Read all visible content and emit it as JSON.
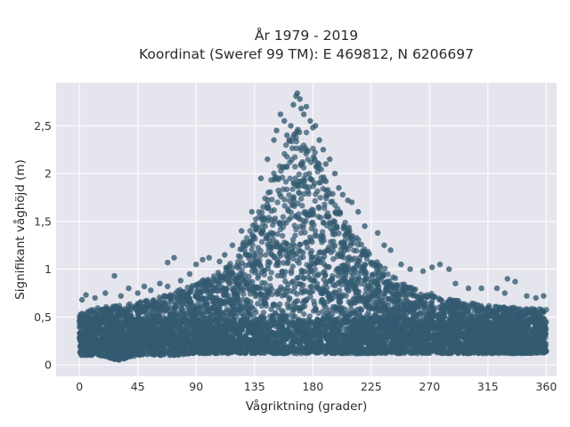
{
  "colors": {
    "plot_background": "#e5e5ee",
    "grid": "#ffffff",
    "marker": "#335a70",
    "marker_dark": "#2a4d61",
    "text": "#2a2a2a"
  },
  "chart_data": {
    "type": "scatter",
    "title": "År 1979 - 2019",
    "subtitle": "Koordinat (Sweref 99 TM): E 469812, N 6206697",
    "xlabel": "Vågriktning (grader)",
    "ylabel": "Signifikant våghöjd (m)",
    "xlim": [
      -18,
      368
    ],
    "ylim": [
      -0.12,
      2.95
    ],
    "x_ticks": [
      0,
      45,
      90,
      135,
      180,
      225,
      270,
      315,
      360
    ],
    "x_tick_labels": [
      "0",
      "45",
      "90",
      "135",
      "180",
      "225",
      "270",
      "315",
      "360"
    ],
    "y_ticks": [
      0,
      0.5,
      1,
      1.5,
      2,
      2.5
    ],
    "y_tick_labels": [
      "0",
      "0,5",
      "1",
      "1,5",
      "2",
      "2,5"
    ],
    "grid": true,
    "series": [
      {
        "marker_color": "#335a70",
        "envelope": {
          "direction_deg": [
            0,
            15,
            30,
            45,
            60,
            75,
            90,
            105,
            120,
            135,
            145,
            155,
            160,
            165,
            170,
            175,
            180,
            190,
            200,
            210,
            225,
            240,
            255,
            270,
            285,
            300,
            315,
            330,
            345,
            360
          ],
          "lower_height_m": [
            0.1,
            0.1,
            0.05,
            0.1,
            0.1,
            0.1,
            0.12,
            0.12,
            0.12,
            0.12,
            0.12,
            0.12,
            0.12,
            0.12,
            0.12,
            0.12,
            0.12,
            0.12,
            0.12,
            0.12,
            0.12,
            0.12,
            0.12,
            0.12,
            0.12,
            0.12,
            0.12,
            0.12,
            0.12,
            0.12
          ],
          "upper_height_m": [
            0.55,
            0.6,
            0.62,
            0.65,
            0.7,
            0.78,
            0.85,
            0.95,
            1.1,
            1.55,
            1.9,
            2.15,
            2.35,
            2.45,
            2.5,
            2.48,
            2.3,
            1.95,
            1.65,
            1.4,
            1.15,
            0.95,
            0.82,
            0.75,
            0.7,
            0.65,
            0.62,
            0.6,
            0.6,
            0.58
          ]
        },
        "outliers": [
          {
            "x": 27,
            "y": 0.93
          },
          {
            "x": 38,
            "y": 0.8
          },
          {
            "x": 55,
            "y": 0.78
          },
          {
            "x": 68,
            "y": 0.82
          },
          {
            "x": 68,
            "y": 1.07
          },
          {
            "x": 73,
            "y": 1.12
          },
          {
            "x": 78,
            "y": 0.88
          },
          {
            "x": 90,
            "y": 1.05
          },
          {
            "x": 95,
            "y": 1.1
          },
          {
            "x": 100,
            "y": 1.12
          },
          {
            "x": 108,
            "y": 1.08
          },
          {
            "x": 118,
            "y": 1.25
          },
          {
            "x": 125,
            "y": 1.4
          },
          {
            "x": 133,
            "y": 1.6
          },
          {
            "x": 140,
            "y": 1.95
          },
          {
            "x": 145,
            "y": 2.15
          },
          {
            "x": 150,
            "y": 2.35
          },
          {
            "x": 152,
            "y": 2.45
          },
          {
            "x": 155,
            "y": 2.62
          },
          {
            "x": 158,
            "y": 2.55
          },
          {
            "x": 160,
            "y": 2.4
          },
          {
            "x": 163,
            "y": 2.5
          },
          {
            "x": 165,
            "y": 2.72
          },
          {
            "x": 167,
            "y": 2.81
          },
          {
            "x": 168,
            "y": 2.84
          },
          {
            "x": 170,
            "y": 2.78
          },
          {
            "x": 171,
            "y": 2.68
          },
          {
            "x": 173,
            "y": 2.62
          },
          {
            "x": 175,
            "y": 2.7
          },
          {
            "x": 178,
            "y": 2.55
          },
          {
            "x": 180,
            "y": 2.48
          },
          {
            "x": 182,
            "y": 2.5
          },
          {
            "x": 185,
            "y": 2.35
          },
          {
            "x": 188,
            "y": 2.25
          },
          {
            "x": 190,
            "y": 2.1
          },
          {
            "x": 193,
            "y": 2.15
          },
          {
            "x": 197,
            "y": 2.0
          },
          {
            "x": 200,
            "y": 1.85
          },
          {
            "x": 203,
            "y": 1.78
          },
          {
            "x": 207,
            "y": 1.72
          },
          {
            "x": 210,
            "y": 1.7
          },
          {
            "x": 215,
            "y": 1.6
          },
          {
            "x": 220,
            "y": 1.45
          },
          {
            "x": 230,
            "y": 1.38
          },
          {
            "x": 235,
            "y": 1.25
          },
          {
            "x": 240,
            "y": 1.2
          },
          {
            "x": 248,
            "y": 1.05
          },
          {
            "x": 255,
            "y": 1.0
          },
          {
            "x": 265,
            "y": 0.98
          },
          {
            "x": 272,
            "y": 1.02
          },
          {
            "x": 278,
            "y": 1.05
          },
          {
            "x": 285,
            "y": 1.0
          },
          {
            "x": 290,
            "y": 0.85
          },
          {
            "x": 300,
            "y": 0.8
          },
          {
            "x": 310,
            "y": 0.8
          },
          {
            "x": 322,
            "y": 0.8
          },
          {
            "x": 328,
            "y": 0.75
          },
          {
            "x": 330,
            "y": 0.9
          },
          {
            "x": 336,
            "y": 0.87
          },
          {
            "x": 345,
            "y": 0.72
          },
          {
            "x": 352,
            "y": 0.7
          },
          {
            "x": 358,
            "y": 0.72
          },
          {
            "x": 2,
            "y": 0.68
          },
          {
            "x": 5,
            "y": 0.73
          },
          {
            "x": 12,
            "y": 0.7
          },
          {
            "x": 20,
            "y": 0.75
          },
          {
            "x": 32,
            "y": 0.72
          },
          {
            "x": 45,
            "y": 0.75
          },
          {
            "x": 50,
            "y": 0.82
          },
          {
            "x": 62,
            "y": 0.85
          },
          {
            "x": 85,
            "y": 0.95
          },
          {
            "x": 112,
            "y": 1.15
          }
        ]
      }
    ]
  }
}
